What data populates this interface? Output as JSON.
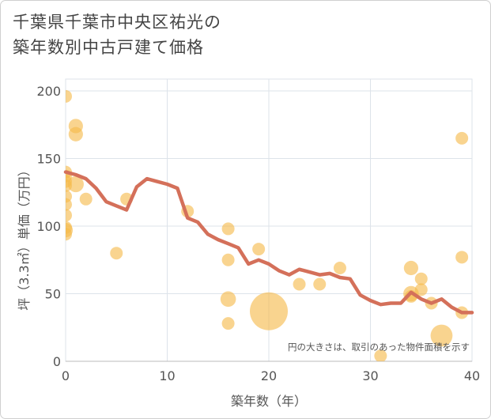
{
  "chart_data": {
    "type": "scatter",
    "title_lines": [
      "千葉県千葉市中央区祐光の",
      "築年数別中古戸建て価格"
    ],
    "xlabel": "築年数（年）",
    "ylabel": "坪（3.3㎡）単価（万円）",
    "xlim": [
      0,
      40
    ],
    "ylim": [
      0,
      200
    ],
    "xticks": [
      0,
      10,
      20,
      30,
      40
    ],
    "yticks": [
      0,
      50,
      100,
      150,
      200
    ],
    "note": "円の大きさは、取引のあった物件面積を示す",
    "colors": {
      "bubble": "#f5b94a",
      "line": "#d4705a",
      "grid": "#dde3ea"
    },
    "scatter_points": [
      {
        "x": 0,
        "y": 196,
        "size": 1
      },
      {
        "x": 0,
        "y": 140,
        "size": 1
      },
      {
        "x": 0,
        "y": 137,
        "size": 1
      },
      {
        "x": 0,
        "y": 133,
        "size": 1
      },
      {
        "x": 0,
        "y": 130,
        "size": 1
      },
      {
        "x": 0,
        "y": 122,
        "size": 1
      },
      {
        "x": 0,
        "y": 116,
        "size": 1
      },
      {
        "x": 0,
        "y": 108,
        "size": 1
      },
      {
        "x": 0,
        "y": 99,
        "size": 1
      },
      {
        "x": 0,
        "y": 97,
        "size": 1.3
      },
      {
        "x": 0,
        "y": 94,
        "size": 1
      },
      {
        "x": 1,
        "y": 174,
        "size": 1.3
      },
      {
        "x": 1,
        "y": 168,
        "size": 1.3
      },
      {
        "x": 1,
        "y": 131,
        "size": 1.6
      },
      {
        "x": 2,
        "y": 120,
        "size": 1
      },
      {
        "x": 5,
        "y": 80,
        "size": 1
      },
      {
        "x": 6,
        "y": 120,
        "size": 1
      },
      {
        "x": 12,
        "y": 111,
        "size": 1
      },
      {
        "x": 16,
        "y": 98,
        "size": 1
      },
      {
        "x": 16,
        "y": 75,
        "size": 1
      },
      {
        "x": 16,
        "y": 46,
        "size": 1.5
      },
      {
        "x": 16,
        "y": 28,
        "size": 1
      },
      {
        "x": 19,
        "y": 83,
        "size": 1
      },
      {
        "x": 20,
        "y": 37,
        "size": 9
      },
      {
        "x": 23,
        "y": 57,
        "size": 1
      },
      {
        "x": 25,
        "y": 57,
        "size": 1
      },
      {
        "x": 27,
        "y": 69,
        "size": 1
      },
      {
        "x": 31,
        "y": 4,
        "size": 1
      },
      {
        "x": 34,
        "y": 69,
        "size": 1.3
      },
      {
        "x": 34,
        "y": 50,
        "size": 1.5
      },
      {
        "x": 34,
        "y": 48,
        "size": 1
      },
      {
        "x": 35,
        "y": 61,
        "size": 1
      },
      {
        "x": 35,
        "y": 53,
        "size": 1
      },
      {
        "x": 36,
        "y": 43,
        "size": 1
      },
      {
        "x": 37,
        "y": 19,
        "size": 3
      },
      {
        "x": 39,
        "y": 165,
        "size": 1
      },
      {
        "x": 39,
        "y": 77,
        "size": 1
      },
      {
        "x": 39,
        "y": 36,
        "size": 1
      }
    ],
    "trend_line": {
      "x": [
        0,
        1,
        2,
        3,
        4,
        5,
        6,
        7,
        8,
        9,
        10,
        11,
        12,
        13,
        14,
        15,
        16,
        17,
        18,
        19,
        20,
        21,
        22,
        23,
        24,
        25,
        26,
        27,
        28,
        29,
        30,
        31,
        32,
        33,
        34,
        35,
        36,
        37,
        38,
        39,
        40
      ],
      "y": [
        140,
        138,
        135,
        128,
        118,
        115,
        112,
        129,
        135,
        133,
        131,
        128,
        106,
        103,
        94,
        90,
        87,
        84,
        72,
        75,
        72,
        67,
        64,
        68,
        66,
        64,
        65,
        62,
        61,
        49,
        45,
        42,
        43,
        43,
        51,
        46,
        43,
        46,
        40,
        36,
        36
      ]
    }
  }
}
